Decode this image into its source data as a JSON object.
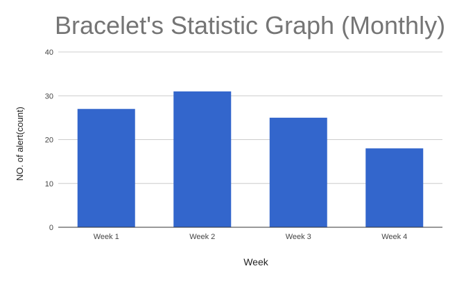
{
  "chart_data": {
    "type": "bar",
    "title": "Bracelet's Statistic Graph (Monthly)",
    "xlabel": "Week",
    "ylabel": "NO. of alert(count)",
    "categories": [
      "Week 1",
      "Week 2",
      "Week 3",
      "Week 4"
    ],
    "values": [
      27,
      31,
      25,
      18
    ],
    "ylim": [
      0,
      40
    ],
    "yticks": [
      0,
      10,
      20,
      30,
      40
    ],
    "ytick_labels": [
      "0",
      "10",
      "20",
      "30",
      "40"
    ],
    "grid": true,
    "legend": "none",
    "colors": {
      "bar": "#3366cc",
      "grid": "#cccccc",
      "axis": "#333333",
      "title": "#757575",
      "tick_label": "#444444",
      "axis_label": "#222222"
    }
  }
}
